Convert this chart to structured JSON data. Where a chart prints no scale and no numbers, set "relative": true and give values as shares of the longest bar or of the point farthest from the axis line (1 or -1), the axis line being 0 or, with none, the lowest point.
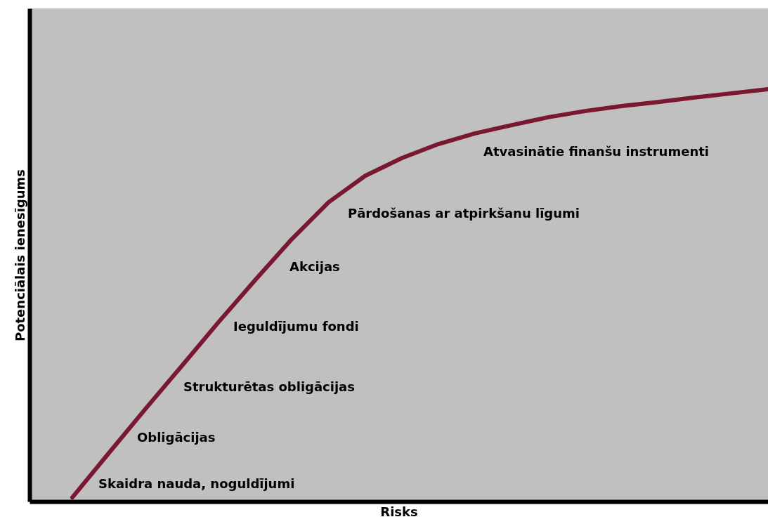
{
  "chart_data": {
    "type": "line",
    "relative": true,
    "xlabel": "Risks",
    "ylabel": "Potenciālais ienesīgums",
    "categories": [
      null,
      null,
      null,
      null,
      null,
      null,
      null,
      null,
      null,
      null,
      null,
      null,
      null,
      null,
      null,
      null,
      null,
      null,
      null,
      null
    ],
    "series": [
      {
        "color": "#7a1832",
        "values": [
          0.01,
          0.118,
          0.225,
          0.33,
          0.436,
          0.538,
          0.637,
          0.726,
          0.79,
          0.833,
          0.867,
          0.893,
          0.913,
          0.932,
          0.947,
          0.959,
          0.969,
          0.98,
          0.99,
          1
        ]
      }
    ],
    "annotations": [
      "Skaidra nauda, noguldījumi",
      "Obligācijas",
      "Strukturētas obligācijas",
      "Ieguldījumu fondi",
      "Akcijas",
      "Pārdošanas ar atpirkšanu līgumi",
      "Atvasinātie finanšu instrumenti"
    ],
    "grid": false,
    "marker": "none",
    "line_style": "solid"
  }
}
